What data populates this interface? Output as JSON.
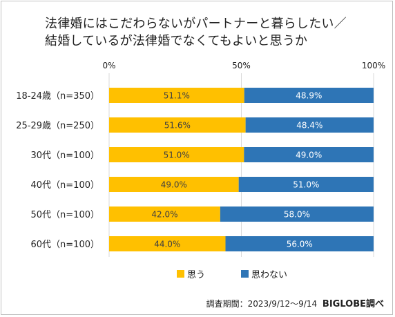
{
  "title_lines": [
    "法律婚にはこだわらないがパートナーと暮らしたい／",
    "結婚しているが法律婚でなくてもよいと思うか"
  ],
  "footer": {
    "period": "調査期間：2023/9/12～9/14",
    "source": "BIGLOBE調べ"
  },
  "colors": {
    "yes": "#FFC000",
    "no": "#2E75B6",
    "grid": "#D9D9D9"
  },
  "chart_data": {
    "type": "bar",
    "orientation": "horizontal",
    "stacked": true,
    "percent": true,
    "title": "法律婚にはこだわらないがパートナーと暮らしたい／結婚しているが法律婚でなくてもよいと思うか",
    "xlim": [
      0,
      100
    ],
    "xticks": [
      {
        "value": 0,
        "label": "0%"
      },
      {
        "value": 50,
        "label": "50%"
      },
      {
        "value": 100,
        "label": "100%"
      }
    ],
    "categories": [
      "18-24歳（n=350）",
      "25-29歳（n=250）",
      "30代（n=100）",
      "40代（n=100）",
      "50代（n=100）",
      "60代（n=100）"
    ],
    "series": [
      {
        "name": "思う",
        "values": [
          51.1,
          51.6,
          51.0,
          49.0,
          42.0,
          44.0
        ],
        "labels": [
          "51.1%",
          "51.6%",
          "51.0%",
          "49.0%",
          "42.0%",
          "44.0%"
        ]
      },
      {
        "name": "思わない",
        "values": [
          48.9,
          48.4,
          49.0,
          51.0,
          58.0,
          56.0
        ],
        "labels": [
          "48.9%",
          "48.4%",
          "49.0%",
          "51.0%",
          "58.0%",
          "56.0%"
        ]
      }
    ],
    "legend_position": "bottom",
    "grid": true
  }
}
